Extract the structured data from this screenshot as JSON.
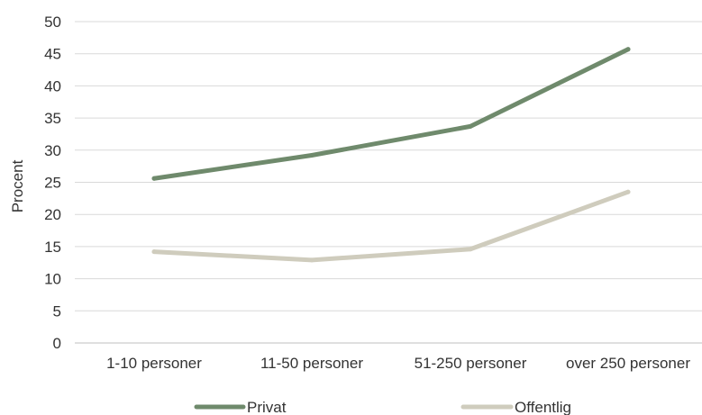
{
  "chart_data": {
    "type": "line",
    "title": "",
    "xlabel": "",
    "ylabel": "Procent",
    "ylim": [
      0,
      50
    ],
    "y_ticks": [
      0,
      5,
      10,
      15,
      20,
      25,
      30,
      35,
      40,
      45,
      50
    ],
    "grid": true,
    "legend_position": "bottom",
    "categories": [
      "1-10 personer",
      "11-50 personer",
      "51-250 personer",
      "over 250 personer"
    ],
    "series": [
      {
        "name": "Privat",
        "color": "#6f8a6c",
        "values": [
          25.6,
          29.2,
          33.7,
          45.7
        ]
      },
      {
        "name": "Offentlig",
        "color": "#cfccbd",
        "values": [
          14.2,
          12.9,
          14.6,
          23.5
        ]
      }
    ]
  }
}
